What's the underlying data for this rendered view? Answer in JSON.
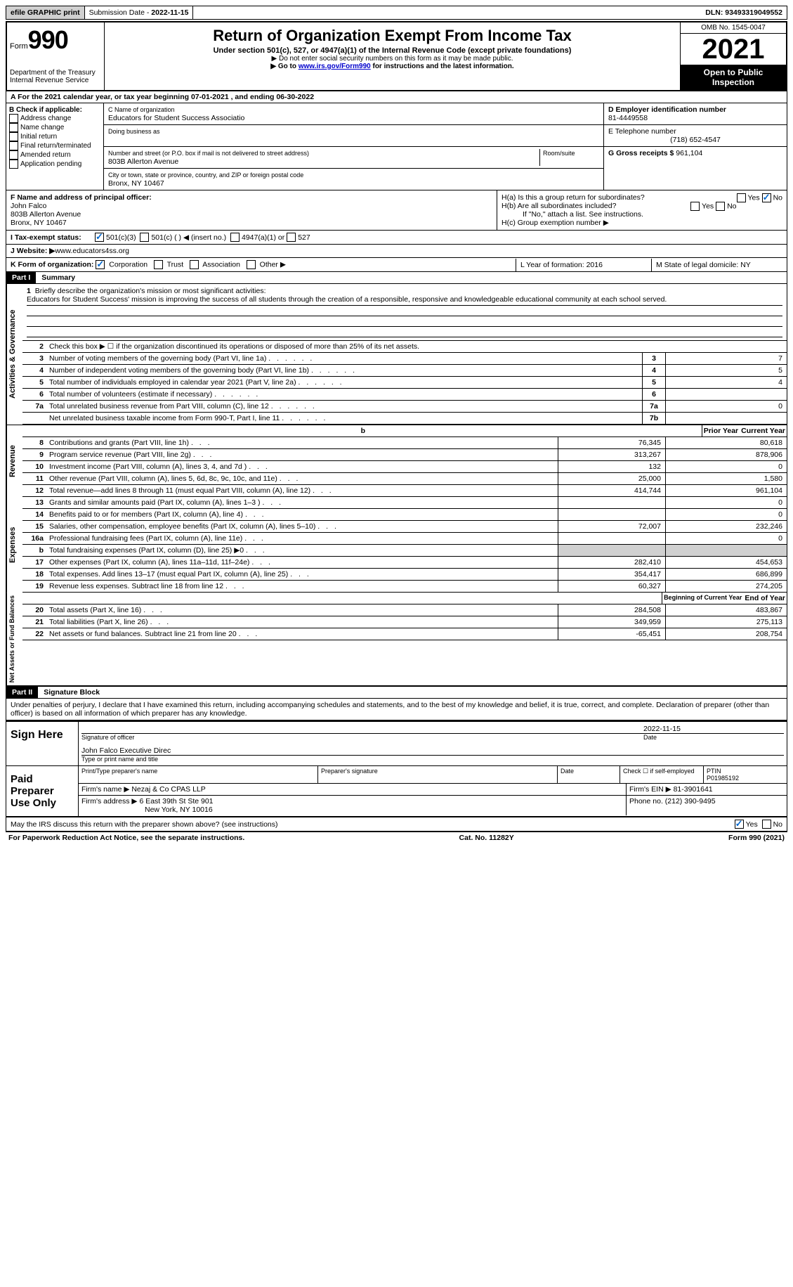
{
  "topbar": {
    "efile": "efile GRAPHIC print",
    "submission_label": "Submission Date - ",
    "submission_date": "2022-11-15",
    "dln_label": "DLN: ",
    "dln": "93493319049552"
  },
  "header": {
    "form_label": "Form",
    "form_number": "990",
    "dept": "Department of the Treasury",
    "irs": "Internal Revenue Service",
    "title": "Return of Organization Exempt From Income Tax",
    "subtitle": "Under section 501(c), 527, or 4947(a)(1) of the Internal Revenue Code (except private foundations)",
    "note1": "▶ Do not enter social security numbers on this form as it may be made public.",
    "note2_pre": "▶ Go to ",
    "note2_link": "www.irs.gov/Form990",
    "note2_post": " for instructions and the latest information.",
    "omb": "OMB No. 1545-0047",
    "year": "2021",
    "inspect": "Open to Public Inspection"
  },
  "rowA": "A For the 2021 calendar year, or tax year beginning 07-01-2021    , and ending 06-30-2022",
  "colB": {
    "title": "B Check if applicable:",
    "opts": [
      "Address change",
      "Name change",
      "Initial return",
      "Final return/terminated",
      "Amended return",
      "Application pending"
    ]
  },
  "colC": {
    "name_label": "C Name of organization",
    "name": "Educators for Student Success Associatio",
    "dba_label": "Doing business as",
    "addr_label": "Number and street (or P.O. box if mail is not delivered to street address)",
    "room_label": "Room/suite",
    "addr": "803B Allerton Avenue",
    "city_label": "City or town, state or province, country, and ZIP or foreign postal code",
    "city": "Bronx, NY  10467"
  },
  "colD": {
    "ein_label": "D Employer identification number",
    "ein": "81-4449558",
    "phone_label": "E Telephone number",
    "phone": "(718) 652-4547",
    "gross_label": "G Gross receipts $ ",
    "gross": "961,104"
  },
  "midF": {
    "label": "F  Name and address of principal officer:",
    "name": "John Falco",
    "addr1": "803B Allerton Avenue",
    "addr2": "Bronx, NY  10467"
  },
  "midH": {
    "ha": "H(a)  Is this a group return for subordinates?",
    "hb": "H(b)  Are all subordinates included?",
    "hb_note": "If \"No,\" attach a list. See instructions.",
    "hc": "H(c)  Group exemption number ▶"
  },
  "taxExempt": {
    "label": "I    Tax-exempt status:",
    "opt1": "501(c)(3)",
    "opt2": "501(c) (  ) ◀ (insert no.)",
    "opt3": "4947(a)(1) or",
    "opt4": "527"
  },
  "website": {
    "label": "J   Website: ▶  ",
    "url": "www.educators4ss.org"
  },
  "rowK": {
    "label": "K Form of organization:",
    "opts": [
      "Corporation",
      "Trust",
      "Association",
      "Other ▶"
    ],
    "L": "L Year of formation: 2016",
    "M": "M State of legal domicile: NY"
  },
  "part1": {
    "header": "Part I",
    "title": "Summary",
    "mission_label": "Briefly describe the organization's mission or most significant activities:",
    "mission": "Educators for Student Success' mission is improving the success of all students through the creation of a responsible, responsive and knowledgeable educational community at each school served.",
    "line2": "Check this box ▶ ☐ if the organization discontinued its operations or disposed of more than 25% of its net assets.",
    "lines": [
      {
        "n": "3",
        "d": "Number of voting members of the governing body (Part VI, line 1a)",
        "b": "3",
        "v": "7"
      },
      {
        "n": "4",
        "d": "Number of independent voting members of the governing body (Part VI, line 1b)",
        "b": "4",
        "v": "5"
      },
      {
        "n": "5",
        "d": "Total number of individuals employed in calendar year 2021 (Part V, line 2a)",
        "b": "5",
        "v": "4"
      },
      {
        "n": "6",
        "d": "Total number of volunteers (estimate if necessary)",
        "b": "6",
        "v": ""
      },
      {
        "n": "7a",
        "d": "Total unrelated business revenue from Part VIII, column (C), line 12",
        "b": "7a",
        "v": "0"
      },
      {
        "n": "",
        "d": "Net unrelated business taxable income from Form 990-T, Part I, line 11",
        "b": "7b",
        "v": ""
      }
    ]
  },
  "revenue": {
    "side": "Activities & Governance",
    "side2": "Revenue",
    "side3": "Expenses",
    "side4": "Net Assets or Fund Balances",
    "prior_hdr": "Prior Year",
    "current_hdr": "Current Year",
    "lines": [
      {
        "n": "8",
        "d": "Contributions and grants (Part VIII, line 1h)",
        "p": "76,345",
        "c": "80,618"
      },
      {
        "n": "9",
        "d": "Program service revenue (Part VIII, line 2g)",
        "p": "313,267",
        "c": "878,906"
      },
      {
        "n": "10",
        "d": "Investment income (Part VIII, column (A), lines 3, 4, and 7d )",
        "p": "132",
        "c": "0"
      },
      {
        "n": "11",
        "d": "Other revenue (Part VIII, column (A), lines 5, 6d, 8c, 9c, 10c, and 11e)",
        "p": "25,000",
        "c": "1,580"
      },
      {
        "n": "12",
        "d": "Total revenue—add lines 8 through 11 (must equal Part VIII, column (A), line 12)",
        "p": "414,744",
        "c": "961,104"
      }
    ]
  },
  "expenses": {
    "lines": [
      {
        "n": "13",
        "d": "Grants and similar amounts paid (Part IX, column (A), lines 1–3 )",
        "p": "",
        "c": "0"
      },
      {
        "n": "14",
        "d": "Benefits paid to or for members (Part IX, column (A), line 4)",
        "p": "",
        "c": "0"
      },
      {
        "n": "15",
        "d": "Salaries, other compensation, employee benefits (Part IX, column (A), lines 5–10)",
        "p": "72,007",
        "c": "232,246"
      },
      {
        "n": "16a",
        "d": "Professional fundraising fees (Part IX, column (A), line 11e)",
        "p": "",
        "c": "0"
      },
      {
        "n": "b",
        "d": "Total fundraising expenses (Part IX, column (D), line 25) ▶0",
        "p": "shaded",
        "c": "shaded"
      },
      {
        "n": "17",
        "d": "Other expenses (Part IX, column (A), lines 11a–11d, 11f–24e)",
        "p": "282,410",
        "c": "454,653"
      },
      {
        "n": "18",
        "d": "Total expenses. Add lines 13–17 (must equal Part IX, column (A), line 25)",
        "p": "354,417",
        "c": "686,899"
      },
      {
        "n": "19",
        "d": "Revenue less expenses. Subtract line 18 from line 12",
        "p": "60,327",
        "c": "274,205"
      }
    ]
  },
  "netassets": {
    "begin_hdr": "Beginning of Current Year",
    "end_hdr": "End of Year",
    "lines": [
      {
        "n": "20",
        "d": "Total assets (Part X, line 16)",
        "p": "284,508",
        "c": "483,867"
      },
      {
        "n": "21",
        "d": "Total liabilities (Part X, line 26)",
        "p": "349,959",
        "c": "275,113"
      },
      {
        "n": "22",
        "d": "Net assets or fund balances. Subtract line 21 from line 20",
        "p": "-65,451",
        "c": "208,754"
      }
    ]
  },
  "part2": {
    "header": "Part II",
    "title": "Signature Block",
    "declaration": "Under penalties of perjury, I declare that I have examined this return, including accompanying schedules and statements, and to the best of my knowledge and belief, it is true, correct, and complete. Declaration of preparer (other than officer) is based on all information of which preparer has any knowledge."
  },
  "sign": {
    "label": "Sign Here",
    "sig_label": "Signature of officer",
    "date": "2022-11-15",
    "date_label": "Date",
    "name": "John Falco  Executive Direc",
    "name_label": "Type or print name and title"
  },
  "preparer": {
    "label": "Paid Preparer Use Only",
    "print_label": "Print/Type preparer's name",
    "sig_label": "Preparer's signature",
    "date_label": "Date",
    "check_label": "Check ☐ if self-employed",
    "ptin_label": "PTIN",
    "ptin": "P01985192",
    "firm_label": "Firm's name    ▶ ",
    "firm": "Nezaj & Co CPAS LLP",
    "ein_label": "Firm's EIN ▶ ",
    "ein": "81-3901641",
    "addr_label": "Firm's address ▶ ",
    "addr1": "6 East 39th St Ste 901",
    "addr2": "New York, NY  10016",
    "phone_label": "Phone no. ",
    "phone": "(212) 390-9495"
  },
  "discuss": "May the IRS discuss this return with the preparer shown above? (see instructions)",
  "footer": {
    "left": "For Paperwork Reduction Act Notice, see the separate instructions.",
    "mid": "Cat. No. 11282Y",
    "right": "Form 990 (2021)"
  }
}
